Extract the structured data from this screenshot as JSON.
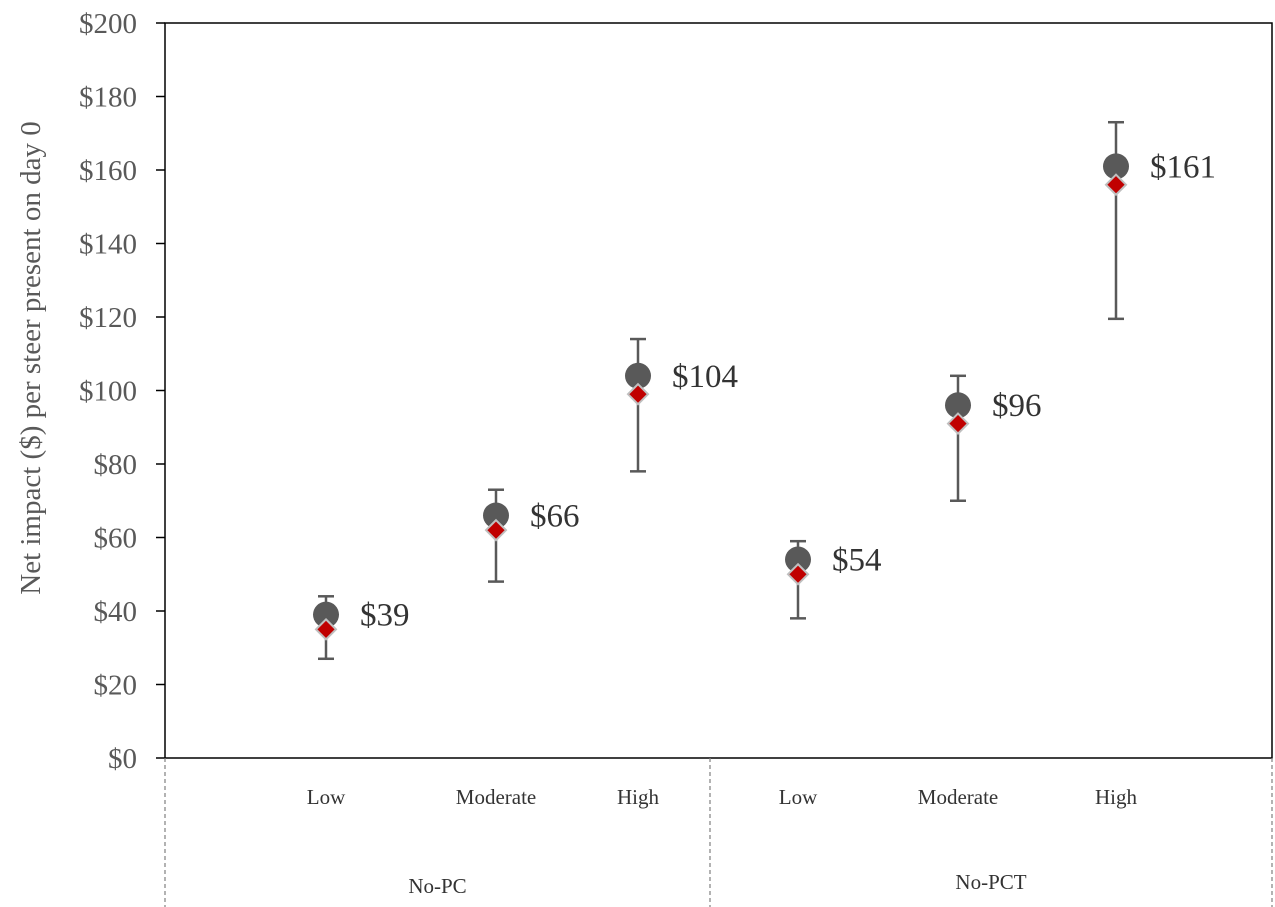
{
  "chart_data": {
    "type": "scatter",
    "title": "",
    "xlabel": "",
    "ylabel": "Net impact ($) per steer present on day 0",
    "ylim": [
      0,
      200
    ],
    "y_ticks": [
      0,
      20,
      40,
      60,
      80,
      100,
      120,
      140,
      160,
      180,
      200
    ],
    "y_tick_labels": [
      "$0",
      "$20",
      "$40",
      "$60",
      "$80",
      "$100",
      "$120",
      "$140",
      "$160",
      "$180",
      "$200"
    ],
    "grid": false,
    "legend": "none",
    "groups": [
      {
        "label": "No-PC",
        "categories": [
          "Low",
          "Moderate",
          "High"
        ]
      },
      {
        "label": "No-PCT",
        "categories": [
          "Low",
          "Moderate",
          "High"
        ]
      }
    ],
    "categories": [
      "Low",
      "Moderate",
      "High",
      "Low",
      "Moderate",
      "High"
    ],
    "series": [
      {
        "marker": "circle",
        "color": "#595959",
        "values": [
          39,
          66,
          104,
          54,
          96,
          161
        ]
      },
      {
        "marker": "diamond",
        "color": "#c00000",
        "values": [
          35,
          62,
          99,
          50,
          91,
          156
        ]
      }
    ],
    "error_bars": {
      "lower": [
        27,
        48,
        78,
        38,
        70,
        119.5
      ],
      "upper": [
        44,
        73,
        114,
        59,
        104,
        173
      ]
    },
    "data_labels": [
      "$39",
      "$66",
      "$104",
      "$54",
      "$96",
      "$161"
    ]
  }
}
